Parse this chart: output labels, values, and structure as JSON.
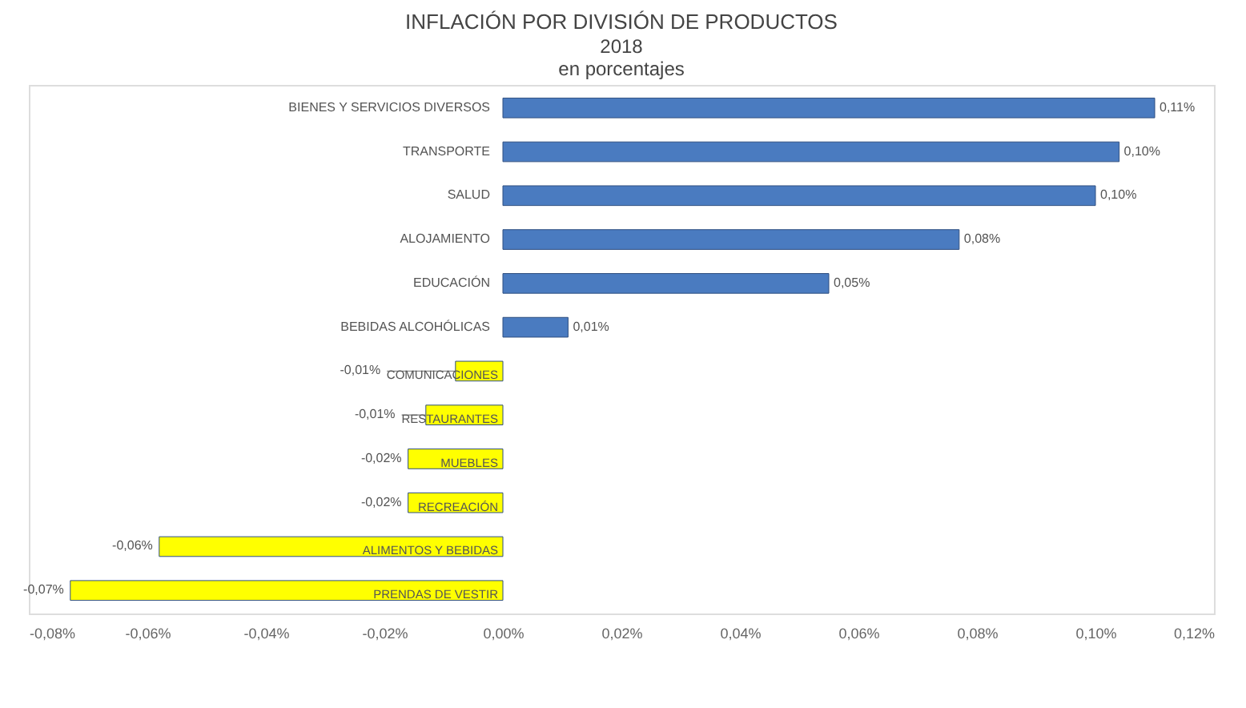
{
  "chart_data": {
    "type": "bar",
    "orientation": "horizontal",
    "title": "INFLACIÓN POR DIVISIÓN DE PRODUCTOS",
    "subtitle": "2018\nen porcentajes",
    "categories": [
      "BIENES Y SERVICIOS DIVERSOS",
      "TRANSPORTE",
      "SALUD",
      "ALOJAMIENTO",
      "EDUCACIÓN",
      "BEBIDAS ALCOHÓLICAS",
      "COMUNICACIONES",
      "RESTAURANTES",
      "MUEBLES",
      "RECREACIÓN",
      "ALIMENTOS Y BEBIDAS",
      "PRENDAS DE VESTIR"
    ],
    "values": [
      0.11,
      0.104,
      0.1,
      0.077,
      0.055,
      0.011,
      -0.008,
      -0.013,
      -0.016,
      -0.016,
      -0.058,
      -0.073
    ],
    "value_labels": [
      "0,11%",
      "0,10%",
      "0,10%",
      "0,08%",
      "0,05%",
      "0,01%",
      "-0,01%",
      "-0,01%",
      "-0,02%",
      "-0,02%",
      "-0,06%",
      "-0,07%"
    ],
    "colors": [
      "#4a7bc0",
      "#4a7bc0",
      "#4a7bc0",
      "#4a7bc0",
      "#4a7bc0",
      "#4a7bc0",
      "#ffff00",
      "#ffff00",
      "#ffff00",
      "#ffff00",
      "#ffff00",
      "#ffff00"
    ],
    "xlim": [
      -0.08,
      0.12
    ],
    "xticks": [
      {
        "value": -0.08,
        "label": "-0,08%"
      },
      {
        "value": -0.06,
        "label": "-0,06%"
      },
      {
        "value": -0.04,
        "label": "-0,04%"
      },
      {
        "value": -0.02,
        "label": "-0,02%"
      },
      {
        "value": 0,
        "label": "0,00%"
      },
      {
        "value": 0.02,
        "label": "0,02%"
      },
      {
        "value": 0.04,
        "label": "0,04%"
      },
      {
        "value": 0.06,
        "label": "0,06%"
      },
      {
        "value": 0.08,
        "label": "0,08%"
      },
      {
        "value": 0.1,
        "label": "0,10%"
      },
      {
        "value": 0.12,
        "label": "0,12%"
      }
    ],
    "grid": false
  }
}
